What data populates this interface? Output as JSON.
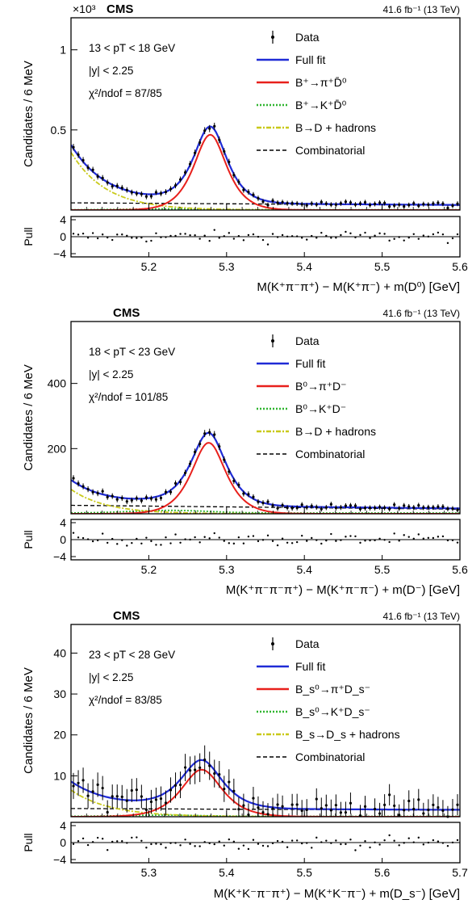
{
  "chart_data": [
    {
      "type": "line",
      "experiment": "CMS",
      "exponent_label": "×10³",
      "luminosity": "41.6 fb⁻¹ (13 TeV)",
      "info": [
        "13 < pT < 18 GeV",
        "|y| < 2.25",
        "χ²/ndof = 87/85"
      ],
      "ylabel": "Candidates / 6 MeV",
      "xlabel": "M(K⁺π⁻π⁺) − M(K⁺π⁻) + m(D⁰) [GeV]",
      "pull_label": "Pull",
      "xlim": [
        5.1,
        5.6
      ],
      "ylim": [
        0,
        1.2
      ],
      "xticks": [
        "5.2",
        "5.3",
        "5.4",
        "5.5",
        "5.6"
      ],
      "yticks": [
        "0.5",
        "1"
      ],
      "pull_ticks": [
        "4",
        "0",
        "−4"
      ],
      "legend": [
        "Data",
        "Full fit",
        "B⁺→π⁺D̄⁰",
        "B⁺→K⁺D̄⁰",
        "B→D + hadrons",
        "Combinatorial"
      ],
      "colors": {
        "data": "#000000",
        "full": "#1f2bd6",
        "signal": "#e8201c",
        "misid": "#2fb52f",
        "partial": "#c9c91a",
        "comb": "#000000"
      },
      "peak": {
        "mean": 5.279,
        "sigma": 0.021,
        "amplitude": 0.47
      },
      "combinatorial": {
        "start": 0.045,
        "end": 0.03
      },
      "partial_reco": {
        "amplitude": 0.36,
        "decay": 0.045
      },
      "misid": {
        "amplitude": 0.006
      },
      "data_error": 0.022
    },
    {
      "type": "line",
      "experiment": "CMS",
      "exponent_label": "",
      "luminosity": "41.6 fb⁻¹ (13 TeV)",
      "info": [
        "18 < pT < 23 GeV",
        "|y| < 2.25",
        "χ²/ndof = 101/85"
      ],
      "ylabel": "Candidates / 6 MeV",
      "xlabel": "M(K⁺π⁻π⁻π⁺) − M(K⁺π⁻π⁻) + m(D⁻) [GeV]",
      "pull_label": "Pull",
      "xlim": [
        5.1,
        5.6
      ],
      "ylim": [
        0,
        590
      ],
      "xticks": [
        "5.2",
        "5.3",
        "5.4",
        "5.5",
        "5.6"
      ],
      "yticks": [
        "200",
        "400"
      ],
      "pull_ticks": [
        "4",
        "0",
        "−4"
      ],
      "legend": [
        "Data",
        "Full fit",
        "B⁰→π⁺D⁻",
        "B⁰→K⁺D⁻",
        "B→D + hadrons",
        "Combinatorial"
      ],
      "colors": {
        "data": "#000000",
        "full": "#1f2bd6",
        "signal": "#e8201c",
        "misid": "#2fb52f",
        "partial": "#c9c91a",
        "comb": "#000000"
      },
      "peak": {
        "mean": 5.277,
        "sigma": 0.022,
        "amplitude": 218
      },
      "combinatorial": {
        "start": 26,
        "end": 14
      },
      "partial_reco": {
        "amplitude": 75,
        "decay": 0.045
      },
      "misid": {
        "amplitude": 8
      },
      "data_error": 11
    },
    {
      "type": "line",
      "experiment": "CMS",
      "exponent_label": "",
      "luminosity": "41.6 fb⁻¹ (13 TeV)",
      "info": [
        "23 < pT < 28 GeV",
        "|y| < 2.25",
        "χ²/ndof = 83/85"
      ],
      "ylabel": "Candidates / 6 MeV",
      "xlabel": "M(K⁺K⁻π⁻π⁺) − M(K⁺K⁻π⁻) + m(D_s⁻) [GeV]",
      "pull_label": "Pull",
      "xlim": [
        5.2,
        5.7
      ],
      "ylim": [
        0,
        47
      ],
      "xticks": [
        "5.3",
        "5.4",
        "5.5",
        "5.6",
        "5.7"
      ],
      "yticks": [
        "10",
        "20",
        "30",
        "40"
      ],
      "pull_ticks": [
        "4",
        "0",
        "−4"
      ],
      "legend": [
        "Data",
        "Full fit",
        "B_s⁰→π⁺D_s⁻",
        "B_s⁰→K⁺D_s⁻",
        "B_s→D_s + hadrons",
        "Combinatorial"
      ],
      "colors": {
        "data": "#000000",
        "full": "#1f2bd6",
        "signal": "#e8201c",
        "misid": "#2fb52f",
        "partial": "#c9c91a",
        "comb": "#000000"
      },
      "peak": {
        "mean": 5.368,
        "sigma": 0.026,
        "amplitude": 11.5
      },
      "combinatorial": {
        "start": 2.0,
        "end": 1.6
      },
      "partial_reco": {
        "amplitude": 6.5,
        "decay": 0.05
      },
      "misid": {
        "amplitude": 0.3
      },
      "data_error": 3.5
    }
  ]
}
